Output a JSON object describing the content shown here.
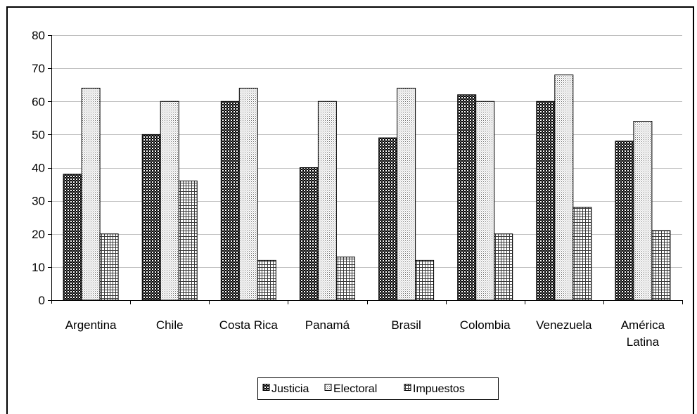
{
  "chart_data": {
    "type": "bar",
    "title": "",
    "xlabel": "",
    "ylabel": "",
    "categories": [
      "Argentina",
      "Chile",
      "Costa Rica",
      "Panamá",
      "Brasil",
      "Colombia",
      "Venezuela",
      "América Latina"
    ],
    "category_lines": [
      [
        "Argentina"
      ],
      [
        "Chile"
      ],
      [
        "Costa Rica"
      ],
      [
        "Panamá"
      ],
      [
        "Brasil"
      ],
      [
        "Colombia"
      ],
      [
        "Venezuela"
      ],
      [
        "América",
        "Latina"
      ]
    ],
    "series": [
      {
        "name": "Justicia",
        "pattern": "checker",
        "values": [
          38,
          50,
          60,
          40,
          49,
          62,
          60,
          48
        ]
      },
      {
        "name": "Electoral",
        "pattern": "dots",
        "values": [
          64,
          60,
          64,
          60,
          64,
          60,
          68,
          54
        ]
      },
      {
        "name": "Impuestos",
        "pattern": "grid",
        "values": [
          20,
          36,
          12,
          13,
          12,
          20,
          28,
          21
        ]
      }
    ],
    "ylim": [
      0,
      80
    ],
    "yticks": [
      0,
      10,
      20,
      30,
      40,
      50,
      60,
      70,
      80
    ],
    "grid": true,
    "legend_position": "bottom"
  }
}
